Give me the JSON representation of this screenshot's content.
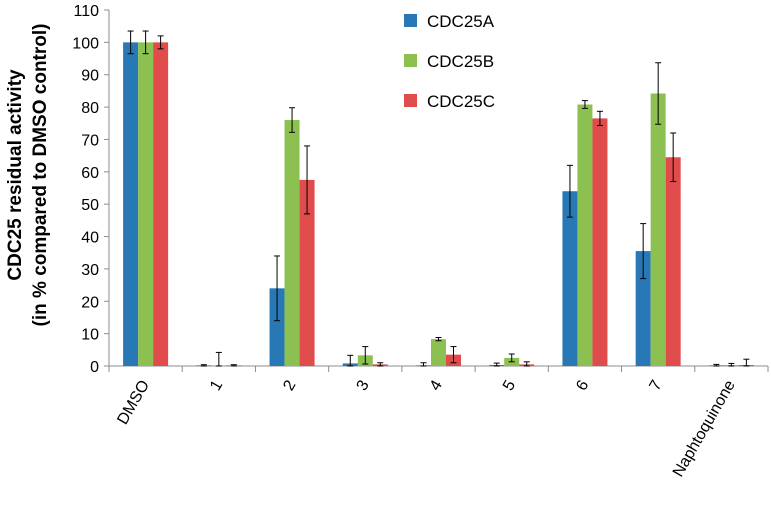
{
  "chart_data": {
    "type": "bar",
    "title": "",
    "xlabel": "",
    "ylabel": [
      "CDC25 residual activity",
      "(in % compared to DMSO control)"
    ],
    "ylim": [
      0,
      110
    ],
    "ytick_step": 10,
    "yticks": [
      "0",
      "10",
      "20",
      "30",
      "40",
      "50",
      "60",
      "70",
      "80",
      "90",
      "100",
      "110"
    ],
    "grid": false,
    "legend_position": "top-center",
    "categories": [
      "DMSO",
      "1",
      "2",
      "3",
      "4",
      "5",
      "6",
      "7",
      "Naphtoquinone"
    ],
    "series": [
      {
        "name": "CDC25A",
        "color": "#2878b5",
        "values": [
          100,
          0.2,
          24,
          0.8,
          0.2,
          0.3,
          54,
          35.5,
          0.2
        ],
        "errors": [
          3.5,
          0.2,
          10,
          2.5,
          0.8,
          0.6,
          8,
          8.5,
          0.3
        ]
      },
      {
        "name": "CDC25B",
        "color": "#8cc152",
        "values": [
          100,
          0.2,
          76,
          3.3,
          8.3,
          2.5,
          80.8,
          84.2,
          0.3
        ],
        "errors": [
          3.5,
          4,
          3.8,
          2.7,
          0.5,
          1.2,
          1.2,
          9.5,
          0.5
        ]
      },
      {
        "name": "CDC25C",
        "color": "#e04b4b",
        "values": [
          100,
          0.2,
          57.5,
          0.5,
          3.5,
          0.5,
          76.5,
          64.5,
          0.3
        ],
        "errors": [
          2,
          0.2,
          10.5,
          0.5,
          2.5,
          0.8,
          2.2,
          7.5,
          1.8
        ]
      }
    ]
  }
}
